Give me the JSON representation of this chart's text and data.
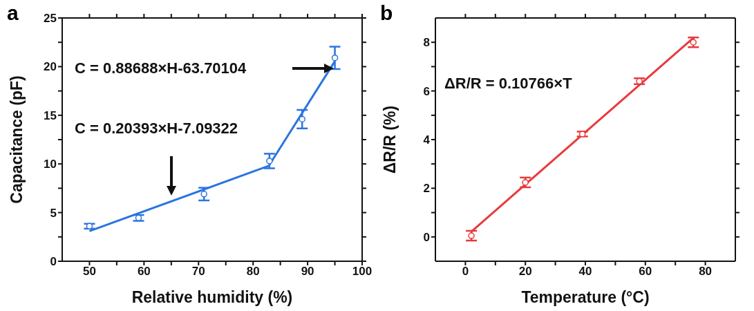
{
  "chart_data": [
    {
      "type": "scatter",
      "title": "a",
      "xlabel": "Relative humidity (%)",
      "ylabel": "Capacitance (pF)",
      "xlim": [
        45,
        100
      ],
      "xticks": [
        50,
        {
          "value": 55,
          "label": null
        },
        60,
        {
          "value": 65,
          "label": null
        },
        70,
        {
          "value": 75,
          "label": null
        },
        80,
        {
          "value": 85,
          "label": null
        },
        90,
        {
          "value": 95,
          "label": null
        },
        100
      ],
      "ylim": [
        0,
        25
      ],
      "yticks": [
        0,
        {
          "value": 2.5,
          "label": null
        },
        5,
        {
          "value": 7.5,
          "label": null
        },
        10,
        {
          "value": 12.5,
          "label": null
        },
        15,
        {
          "value": 17.5,
          "label": null
        },
        20,
        {
          "value": 22.5,
          "label": null
        },
        25
      ],
      "legend": false,
      "annotations": [
        "C = 0.88688×H-63.70104",
        "C = 0.20393×H-7.09322"
      ],
      "series": [
        {
          "type": "scatter",
          "color": "#2a74e0",
          "marker": "circle",
          "x": [
            50,
            59,
            71,
            83,
            89,
            95
          ],
          "values": [
            3.6,
            4.45,
            6.9,
            10.3,
            14.6,
            20.9
          ],
          "errors": [
            0.25,
            0.3,
            0.65,
            0.75,
            0.95,
            1.15
          ]
        },
        {
          "type": "line",
          "color": "#2a74e0",
          "x": [
            50,
            83
          ],
          "values": [
            3.1,
            9.83
          ]
        },
        {
          "type": "line",
          "color": "#2a74e0",
          "x": [
            83,
            95
          ],
          "values": [
            9.91,
            20.55
          ]
        }
      ]
    },
    {
      "type": "scatter",
      "title": "b",
      "xlabel": "Temperature (°C)",
      "ylabel": "ΔR/R (%)",
      "xlim": [
        -10,
        90
      ],
      "xticks": [
        0,
        {
          "value": 10,
          "label": null
        },
        20,
        {
          "value": 30,
          "label": null
        },
        40,
        {
          "value": 50,
          "label": null
        },
        60,
        {
          "value": 70,
          "label": null
        },
        80
      ],
      "ylim": [
        -1,
        9
      ],
      "yticks": [
        0,
        {
          "value": 1,
          "label": null
        },
        2,
        {
          "value": 3,
          "label": null
        },
        4,
        {
          "value": 5,
          "label": null
        },
        6,
        {
          "value": 7,
          "label": null
        },
        8
      ],
      "legend": false,
      "annotations": [
        "ΔR/R = 0.10766×T"
      ],
      "series": [
        {
          "type": "scatter",
          "color": "#e8393c",
          "marker": "circle",
          "x": [
            2,
            20,
            39,
            58,
            76
          ],
          "values": [
            0.05,
            2.24,
            4.23,
            6.4,
            8.0
          ],
          "errors": [
            0.2,
            0.2,
            0.1,
            0.12,
            0.2
          ]
        },
        {
          "type": "line",
          "color": "#e8393c",
          "x": [
            2,
            76
          ],
          "values": [
            0.22,
            8.18
          ]
        }
      ]
    }
  ]
}
